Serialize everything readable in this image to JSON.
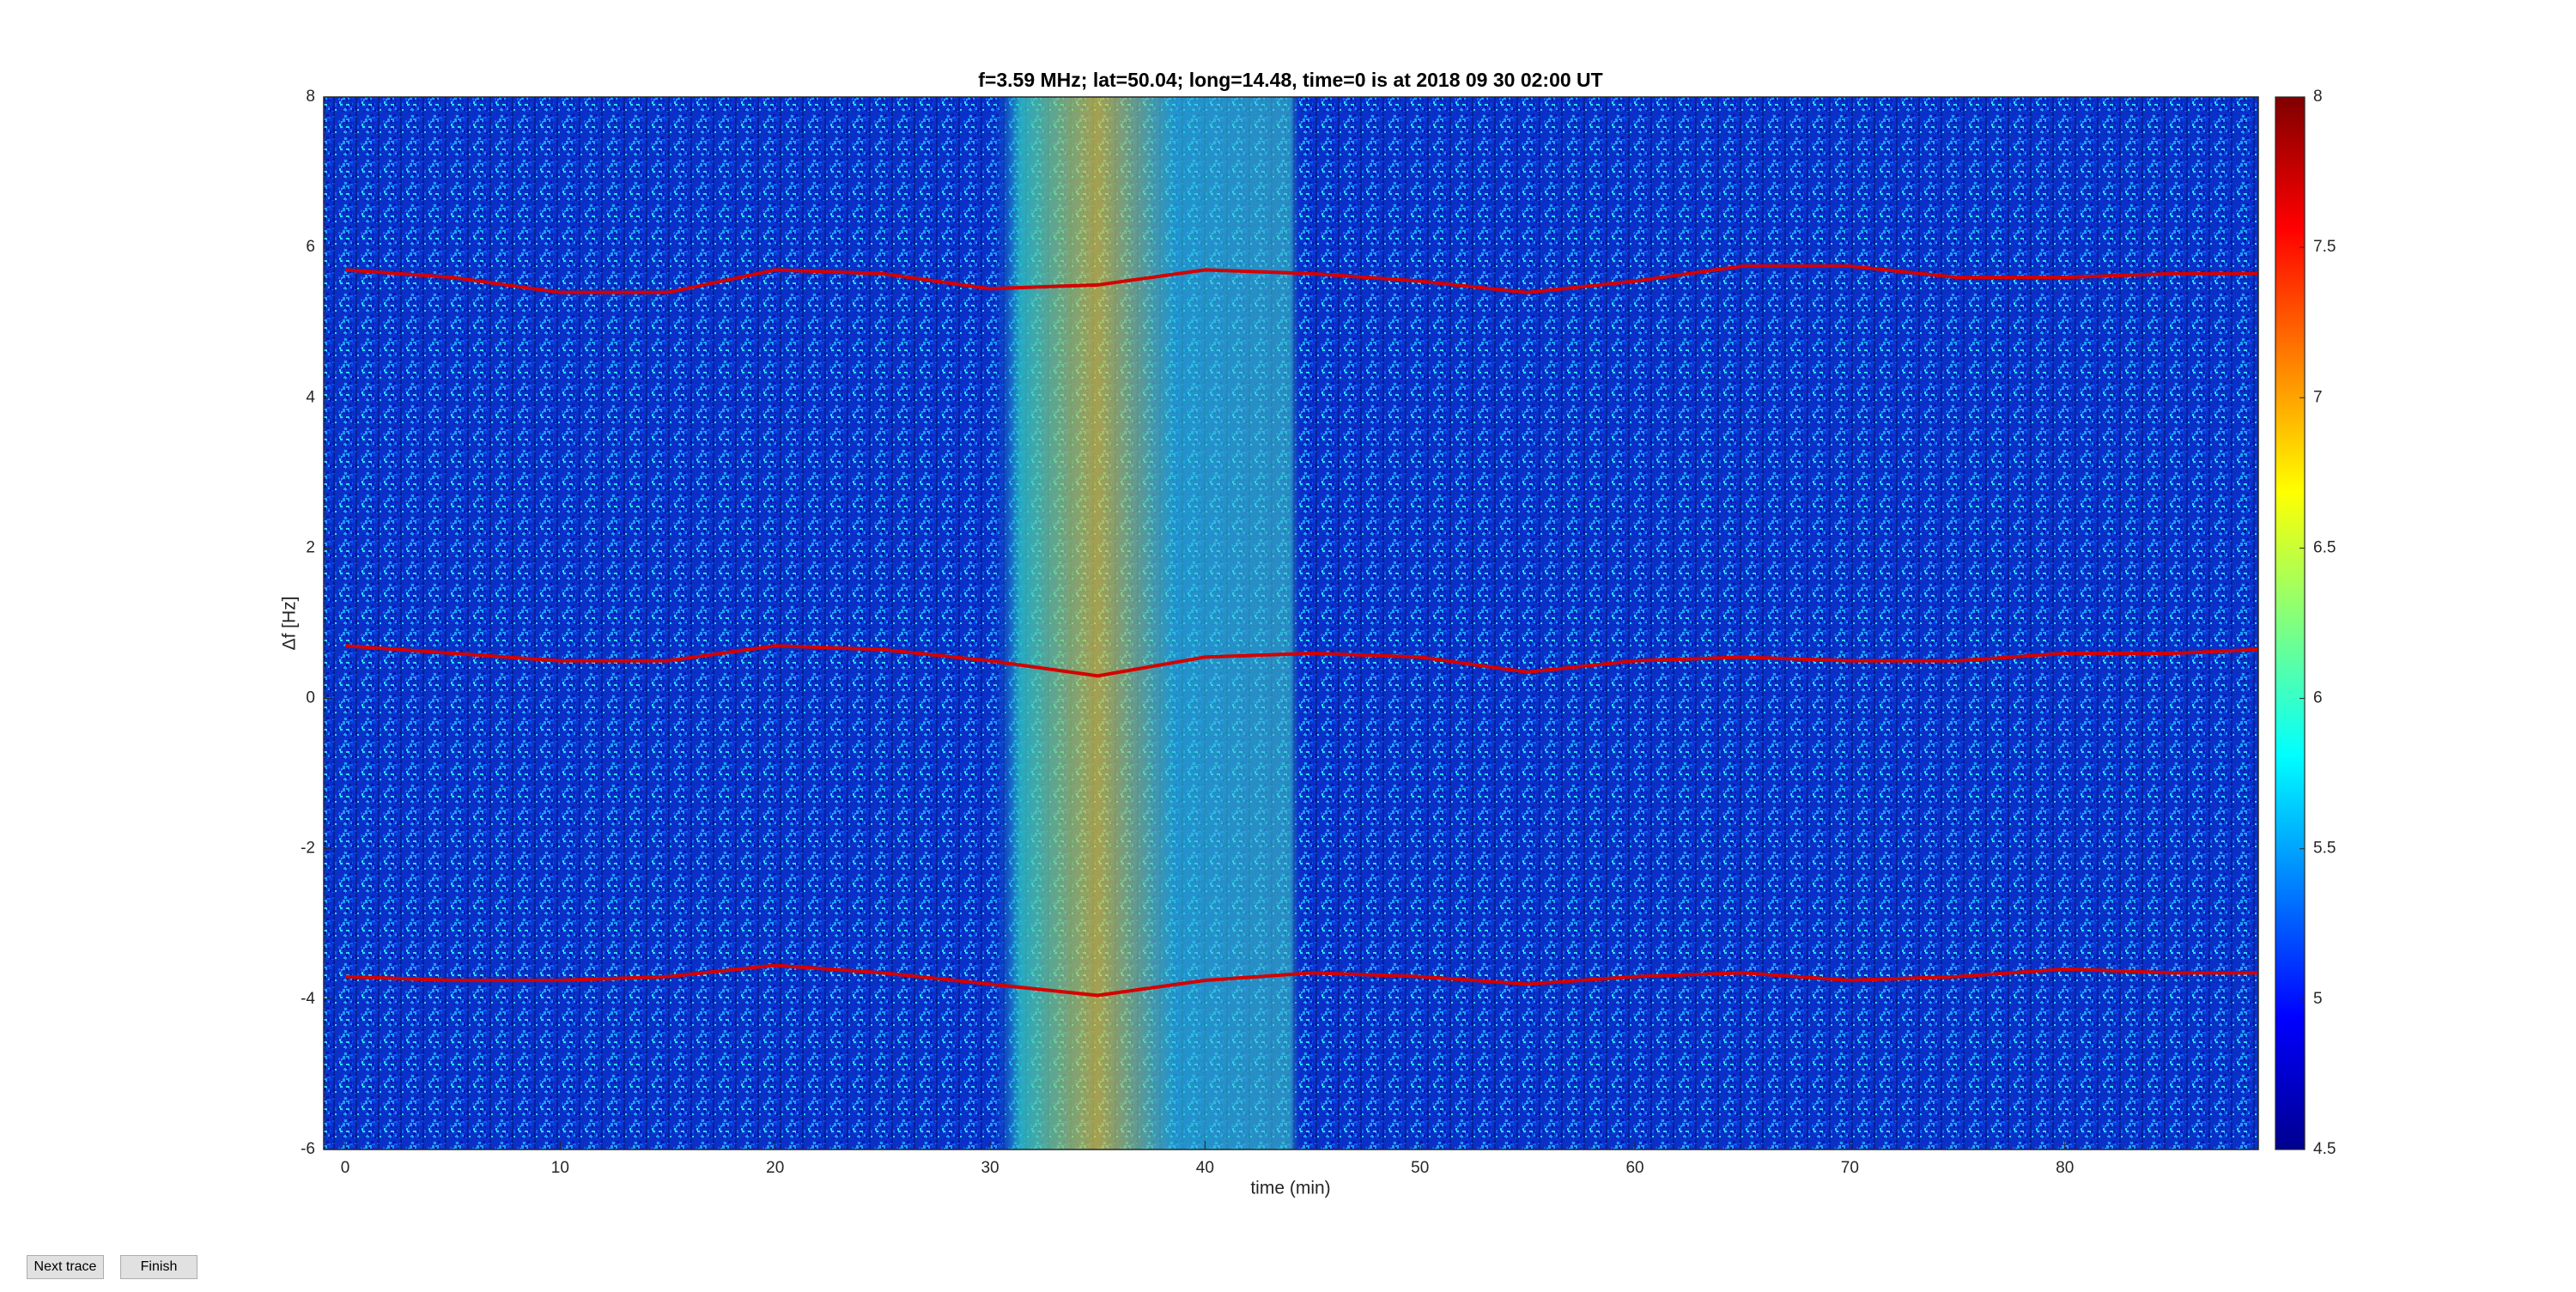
{
  "chart_data": {
    "type": "spectrogram",
    "title": "f=3.59 MHz;  lat=50.04; long=14.48, time=0 is at 2018 09 30 02:00 UT",
    "x_label": "time (min)",
    "y_label": "Δf [Hz]",
    "xlim": [
      -1,
      89
    ],
    "xticks": [
      0,
      10,
      20,
      30,
      40,
      50,
      60,
      70,
      80
    ],
    "ylim": [
      -6,
      8
    ],
    "yticks": [
      -6,
      -4,
      -2,
      0,
      2,
      4,
      6,
      8
    ],
    "colormap": "jet",
    "clim": [
      4.5,
      8
    ],
    "cticks": [
      4.5,
      5,
      5.5,
      6,
      6.5,
      7,
      7.5,
      8
    ],
    "x": [
      0,
      5,
      10,
      15,
      20,
      25,
      30,
      35,
      40,
      45,
      50,
      55,
      60,
      65,
      70,
      75,
      80,
      85,
      89
    ],
    "series": [
      {
        "color": "#d40000",
        "values": [
          5.7,
          5.6,
          5.4,
          5.4,
          5.7,
          5.65,
          5.45,
          5.5,
          5.7,
          5.65,
          5.55,
          5.4,
          5.55,
          5.75,
          5.75,
          5.6,
          5.6,
          5.65,
          5.65
        ]
      },
      {
        "color": "#d40000",
        "values": [
          0.7,
          0.6,
          0.5,
          0.5,
          0.7,
          0.65,
          0.5,
          0.3,
          0.55,
          0.6,
          0.55,
          0.35,
          0.5,
          0.55,
          0.5,
          0.5,
          0.6,
          0.6,
          0.65
        ]
      },
      {
        "color": "#d40000",
        "values": [
          -3.7,
          -3.75,
          -3.75,
          -3.7,
          -3.55,
          -3.65,
          -3.8,
          -3.95,
          -3.75,
          -3.65,
          -3.7,
          -3.8,
          -3.7,
          -3.65,
          -3.75,
          -3.7,
          -3.6,
          -3.65,
          -3.65
        ]
      }
    ]
  },
  "buttons": [
    "Next trace",
    "Finish"
  ]
}
